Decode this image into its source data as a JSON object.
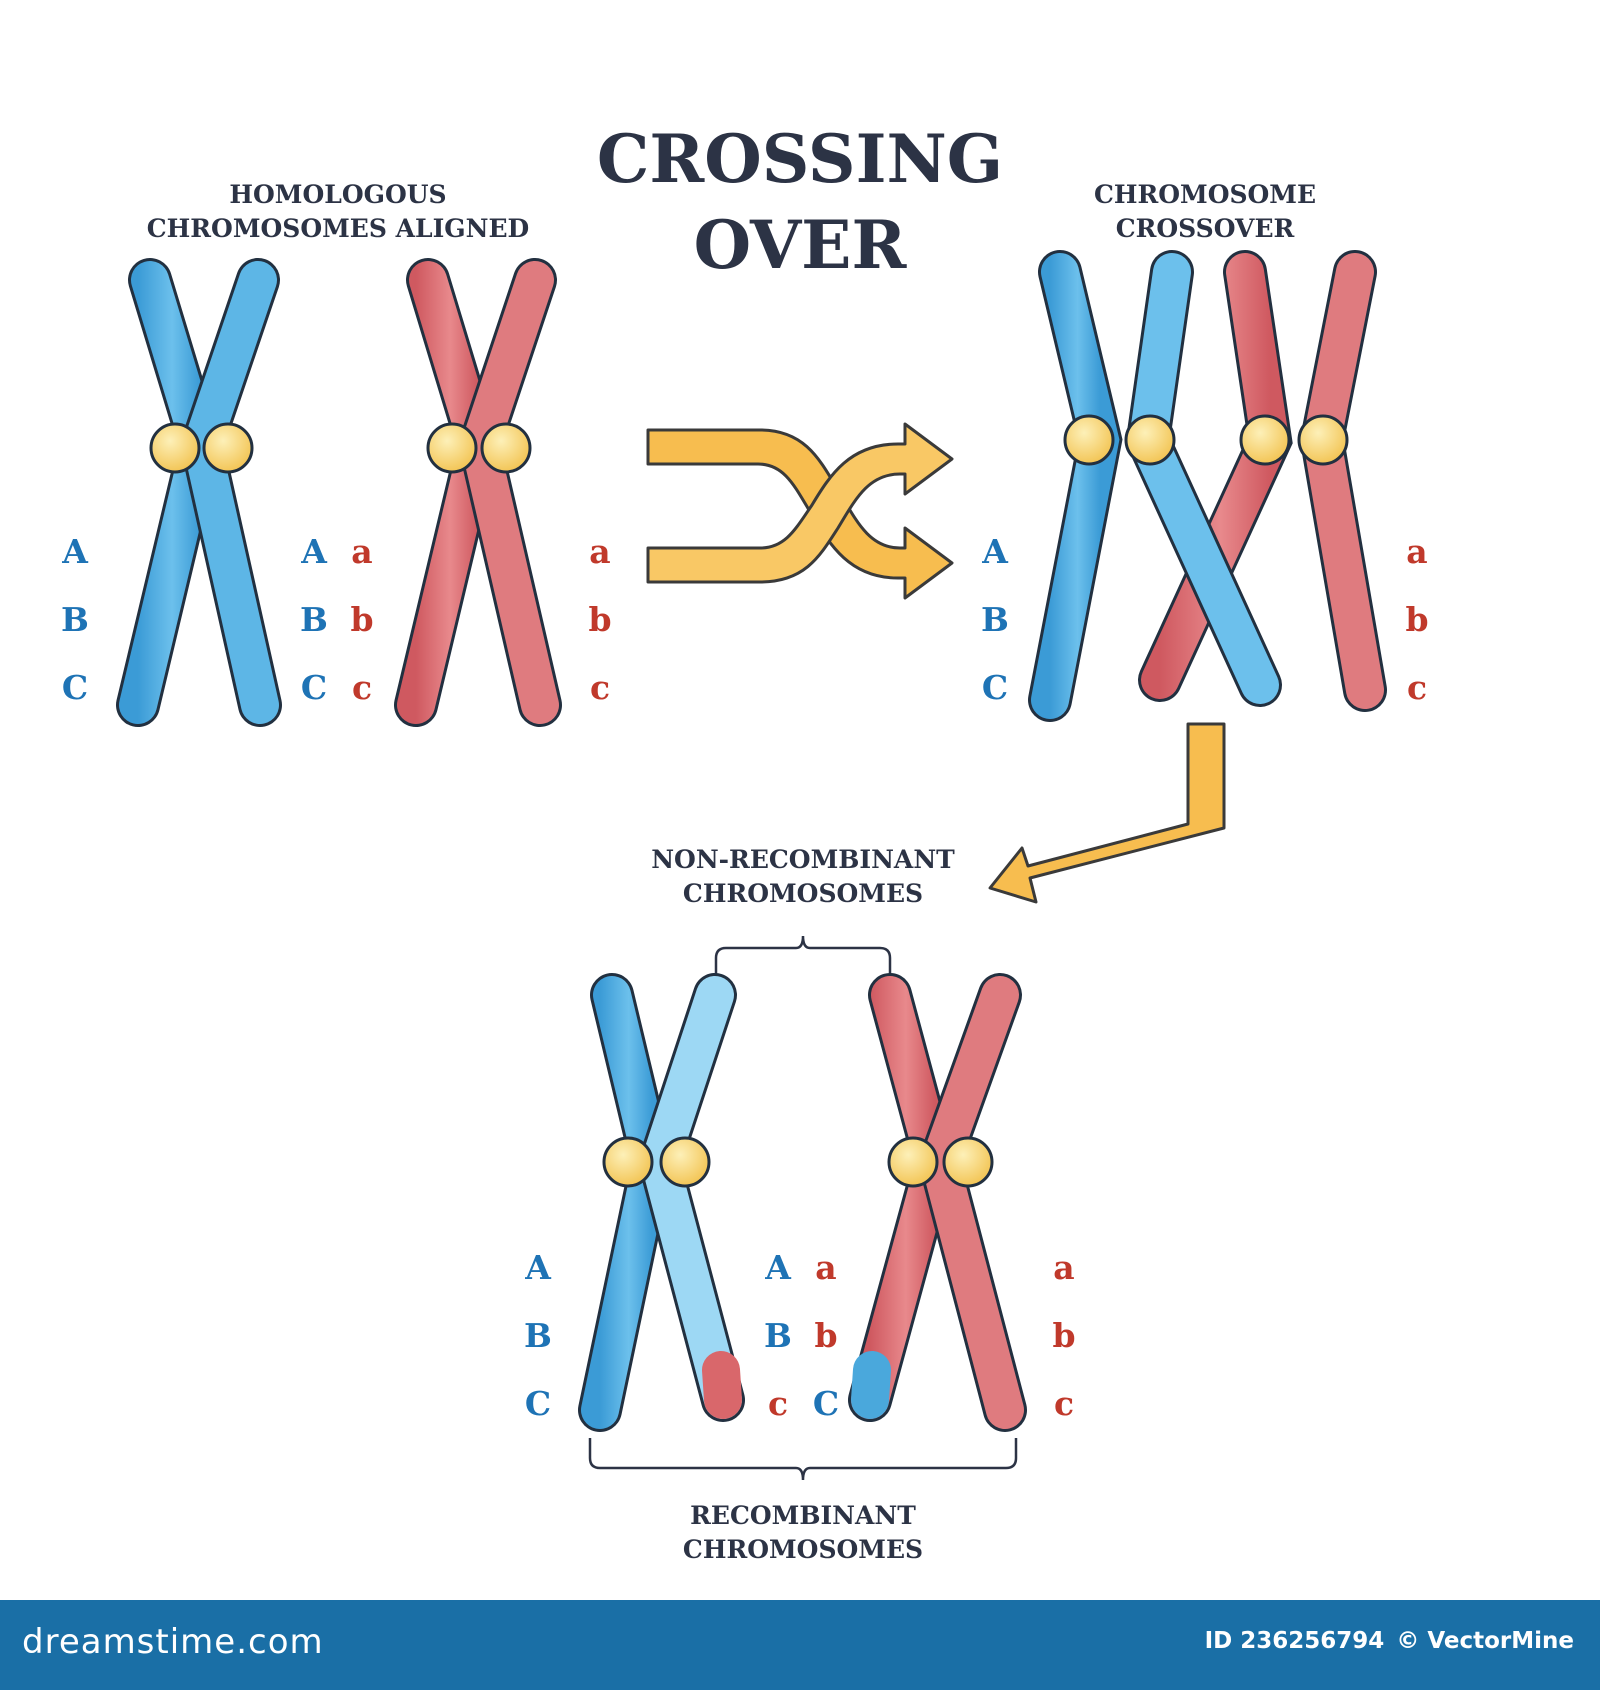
{
  "title": {
    "line1": "CROSSING",
    "line2": "OVER"
  },
  "sections": {
    "aligned": {
      "line1": "HOMOLOGOUS",
      "line2": "CHROMOSOMES ALIGNED"
    },
    "crossover": {
      "line1": "CHROMOSOME",
      "line2": "CROSSOVER"
    },
    "non_recombinant": {
      "line1": "NON-RECOMBINANT",
      "line2": "CHROMOSOMES"
    },
    "recombinant": {
      "line1": "RECOMBINANT",
      "line2": "CHROMOSOMES"
    }
  },
  "alleles": {
    "upper": [
      "A",
      "B",
      "C"
    ],
    "lower": [
      "a",
      "b",
      "c"
    ]
  },
  "footer": {
    "brand": "dreamstime.com",
    "id_text": "ID 236256794",
    "credit": "© VectorMine"
  },
  "colors": {
    "blue_chromosome": "#4aa8dc",
    "red_chromosome": "#d9676b",
    "centromere": "#f6d36a",
    "arrow": "#f7bd4f",
    "text_dark": "#2c3345",
    "allele_blue": "#1e73b5",
    "allele_red": "#c0392b",
    "footer_bar": "#1a6fa6"
  }
}
